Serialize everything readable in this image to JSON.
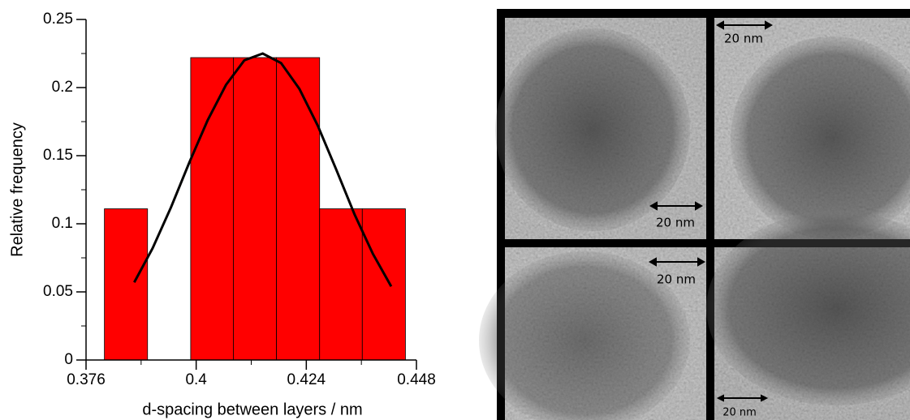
{
  "chart_data": {
    "type": "histogram",
    "x_label": "d-spacing between layers / nm",
    "y_label": "Relative frequency",
    "bins": [
      0.38,
      0.3894,
      0.3988,
      0.4081,
      0.4175,
      0.4269,
      0.4362,
      0.4456
    ],
    "values": [
      0.111,
      0,
      0.222,
      0.222,
      0.222,
      0.111,
      0.111
    ],
    "color": "#ff0000",
    "fit": {
      "color": "#000000",
      "x": [
        0.3865,
        0.3905,
        0.3945,
        0.3985,
        0.4025,
        0.4065,
        0.4105,
        0.4145,
        0.4185,
        0.4225,
        0.4265,
        0.4305,
        0.4345,
        0.4385,
        0.4425
      ],
      "values": [
        0.057,
        0.082,
        0.112,
        0.145,
        0.176,
        0.202,
        0.22,
        0.225,
        0.218,
        0.199,
        0.172,
        0.14,
        0.107,
        0.078,
        0.054
      ]
    },
    "xlim": [
      0.376,
      0.448
    ],
    "ylim": [
      0,
      0.25
    ],
    "xticks": [
      0.376,
      0.4,
      0.424,
      0.448
    ],
    "xminorticks": [
      0.388,
      0.412,
      0.436
    ],
    "yticks": [
      0,
      0.05,
      0.1,
      0.15,
      0.2,
      0.25
    ],
    "yminorticks": [
      0.025,
      0.075,
      0.125,
      0.175,
      0.225
    ],
    "grid": false
  },
  "micrographs": {
    "panels": [
      {
        "scale_label": "20 nm"
      },
      {
        "scale_label": "20 nm"
      },
      {
        "scale_label": "20 nm"
      },
      {
        "scale_label": "20 nm"
      }
    ]
  }
}
